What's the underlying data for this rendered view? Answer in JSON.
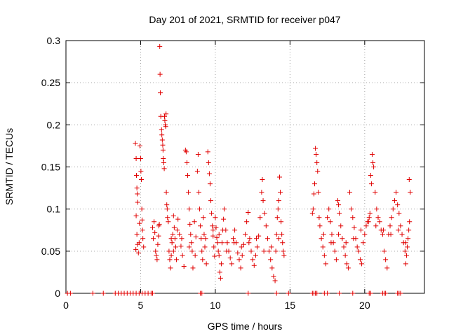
{
  "chart_data": {
    "type": "scatter",
    "title": "Day 201 of 2021, SRMTID for receiver p047",
    "xlabel": "GPS time / hours",
    "ylabel": "SRMTID / TECUs",
    "xlim": [
      0,
      24
    ],
    "ylim": [
      0,
      0.3
    ],
    "xticks": [
      0,
      5,
      10,
      15,
      20
    ],
    "xtick_labels": [
      "0",
      "5",
      "10",
      "15",
      "20"
    ],
    "yticks": [
      0,
      0.05,
      0.1,
      0.15,
      0.2,
      0.25,
      0.3
    ],
    "ytick_labels": [
      "0",
      "0.05",
      "0.1",
      "0.15",
      "0.2",
      "0.25",
      "0.3"
    ],
    "grid": true,
    "marker": "+",
    "color": "#e00000",
    "series": [
      {
        "name": "SRMTID",
        "points": [
          [
            0.1,
            0
          ],
          [
            0.3,
            0
          ],
          [
            1.8,
            0
          ],
          [
            2.5,
            0
          ],
          [
            3.3,
            0
          ],
          [
            3.5,
            0
          ],
          [
            3.7,
            0
          ],
          [
            3.9,
            0
          ],
          [
            4.1,
            0
          ],
          [
            4.3,
            0
          ],
          [
            4.5,
            0
          ],
          [
            4.7,
            0
          ],
          [
            4.9,
            0
          ],
          [
            5.1,
            0
          ],
          [
            5.3,
            0
          ],
          [
            5.5,
            0
          ],
          [
            5.7,
            0
          ],
          [
            5.8,
            0
          ],
          [
            9.0,
            0
          ],
          [
            9.1,
            0
          ],
          [
            12.2,
            0
          ],
          [
            14.1,
            0
          ],
          [
            14.9,
            0
          ],
          [
            16.5,
            0
          ],
          [
            16.6,
            0
          ],
          [
            16.7,
            0
          ],
          [
            16.8,
            0
          ],
          [
            17.3,
            0
          ],
          [
            17.5,
            0
          ],
          [
            18.3,
            0
          ],
          [
            19.2,
            0
          ],
          [
            20.3,
            0
          ],
          [
            20.4,
            0
          ],
          [
            21.2,
            0
          ],
          [
            21.3,
            0
          ],
          [
            21.4,
            0
          ],
          [
            22.2,
            0
          ],
          [
            22.3,
            0
          ],
          [
            22.4,
            0
          ],
          [
            4.65,
            0.178
          ],
          [
            4.7,
            0.16
          ],
          [
            4.72,
            0.14
          ],
          [
            4.75,
            0.125
          ],
          [
            4.78,
            0.118
          ],
          [
            4.8,
            0.108
          ],
          [
            4.7,
            0.092
          ],
          [
            4.75,
            0.07
          ],
          [
            4.8,
            0.058
          ],
          [
            4.85,
            0.048
          ],
          [
            4.68,
            0.052
          ],
          [
            4.9,
            0.06
          ],
          [
            4.92,
            0.083
          ],
          [
            4.95,
            0.175
          ],
          [
            5.0,
            0.16
          ],
          [
            5.02,
            0.145
          ],
          [
            5.05,
            0.135
          ],
          [
            5.08,
            0.1
          ],
          [
            5.1,
            0.087
          ],
          [
            5.12,
            0.075
          ],
          [
            5.15,
            0.065
          ],
          [
            5.2,
            0.055
          ],
          [
            5.8,
            0.078
          ],
          [
            5.85,
            0.065
          ],
          [
            5.9,
            0.085
          ],
          [
            5.95,
            0.072
          ],
          [
            6.0,
            0.05
          ],
          [
            6.05,
            0.045
          ],
          [
            6.1,
            0.04
          ],
          [
            6.15,
            0.058
          ],
          [
            6.2,
            0.068
          ],
          [
            6.22,
            0.08
          ],
          [
            6.25,
            0.082
          ],
          [
            6.28,
            0.293
          ],
          [
            6.3,
            0.26
          ],
          [
            6.32,
            0.238
          ],
          [
            6.35,
            0.21
          ],
          [
            6.4,
            0.194
          ],
          [
            6.42,
            0.188
          ],
          [
            6.45,
            0.182
          ],
          [
            6.48,
            0.176
          ],
          [
            6.5,
            0.17
          ],
          [
            6.52,
            0.16
          ],
          [
            6.55,
            0.155
          ],
          [
            6.58,
            0.148
          ],
          [
            6.6,
            0.21
          ],
          [
            6.62,
            0.205
          ],
          [
            6.65,
            0.2
          ],
          [
            6.68,
            0.198
          ],
          [
            6.7,
            0.213
          ],
          [
            6.72,
            0.12
          ],
          [
            6.75,
            0.105
          ],
          [
            6.78,
            0.1
          ],
          [
            6.8,
            0.09
          ],
          [
            6.85,
            0.085
          ],
          [
            6.9,
            0.05
          ],
          [
            6.95,
            0.04
          ],
          [
            7.0,
            0.03
          ],
          [
            7.05,
            0.045
          ],
          [
            7.1,
            0.06
          ],
          [
            7.15,
            0.07
          ],
          [
            7.2,
            0.092
          ],
          [
            7.25,
            0.078
          ],
          [
            7.3,
            0.065
          ],
          [
            7.35,
            0.055
          ],
          [
            7.4,
            0.04
          ],
          [
            7.5,
            0.088
          ],
          [
            7.6,
            0.07
          ],
          [
            7.7,
            0.056
          ],
          [
            7.8,
            0.045
          ],
          [
            7.9,
            0.032
          ],
          [
            8.0,
            0.17
          ],
          [
            8.05,
            0.168
          ],
          [
            8.1,
            0.155
          ],
          [
            8.15,
            0.14
          ],
          [
            8.2,
            0.12
          ],
          [
            8.25,
            0.1
          ],
          [
            8.3,
            0.082
          ],
          [
            8.35,
            0.07
          ],
          [
            8.4,
            0.06
          ],
          [
            8.45,
            0.05
          ],
          [
            8.5,
            0.03
          ],
          [
            8.6,
            0.085
          ],
          [
            8.7,
            0.067
          ],
          [
            8.8,
            0.145
          ],
          [
            8.85,
            0.165
          ],
          [
            8.9,
            0.12
          ],
          [
            8.95,
            0.1
          ],
          [
            9.0,
            0.08
          ],
          [
            9.05,
            0.065
          ],
          [
            9.1,
            0.05
          ],
          [
            9.15,
            0.04
          ],
          [
            9.2,
            0.09
          ],
          [
            9.25,
            0.07
          ],
          [
            9.3,
            0.055
          ],
          [
            9.4,
            0.035
          ],
          [
            9.5,
            0.168
          ],
          [
            9.55,
            0.155
          ],
          [
            9.6,
            0.142
          ],
          [
            9.65,
            0.13
          ],
          [
            9.7,
            0.11
          ],
          [
            9.75,
            0.095
          ],
          [
            9.8,
            0.08
          ],
          [
            9.85,
            0.068
          ],
          [
            9.9,
            0.055
          ],
          [
            9.95,
            0.044
          ],
          [
            10.0,
            0.09
          ],
          [
            10.05,
            0.078
          ],
          [
            10.1,
            0.066
          ],
          [
            10.15,
            0.06
          ],
          [
            10.2,
            0.05
          ],
          [
            10.25,
            0.045
          ],
          [
            10.3,
            0.025
          ],
          [
            10.35,
            0.018
          ],
          [
            10.4,
            0.035
          ],
          [
            10.45,
            0.06
          ],
          [
            10.5,
            0.075
          ],
          [
            10.55,
            0.088
          ],
          [
            10.6,
            0.1
          ],
          [
            10.7,
            0.075
          ],
          [
            10.8,
            0.06
          ],
          [
            10.9,
            0.05
          ],
          [
            11.0,
            0.042
          ],
          [
            11.1,
            0.035
          ],
          [
            11.2,
            0.065
          ],
          [
            11.3,
            0.075
          ],
          [
            11.4,
            0.06
          ],
          [
            11.5,
            0.048
          ],
          [
            11.6,
            0.04
          ],
          [
            11.7,
            0.03
          ],
          [
            11.8,
            0.045
          ],
          [
            11.9,
            0.058
          ],
          [
            12.0,
            0.07
          ],
          [
            12.1,
            0.085
          ],
          [
            12.2,
            0.096
          ],
          [
            12.3,
            0.065
          ],
          [
            12.4,
            0.05
          ],
          [
            12.5,
            0.04
          ],
          [
            12.6,
            0.033
          ],
          [
            12.7,
            0.045
          ],
          [
            12.8,
            0.055
          ],
          [
            12.9,
            0.068
          ],
          [
            13.0,
            0.09
          ],
          [
            13.1,
            0.12
          ],
          [
            13.15,
            0.135
          ],
          [
            13.2,
            0.11
          ],
          [
            13.3,
            0.095
          ],
          [
            13.4,
            0.08
          ],
          [
            13.5,
            0.065
          ],
          [
            13.6,
            0.05
          ],
          [
            13.7,
            0.04
          ],
          [
            13.8,
            0.03
          ],
          [
            13.9,
            0.02
          ],
          [
            14.0,
            0.015
          ],
          [
            14.05,
            0.05
          ],
          [
            14.1,
            0.07
          ],
          [
            14.15,
            0.09
          ],
          [
            14.2,
            0.1
          ],
          [
            14.25,
            0.11
          ],
          [
            14.3,
            0.138
          ],
          [
            14.35,
            0.12
          ],
          [
            14.4,
            0.085
          ],
          [
            14.45,
            0.07
          ],
          [
            14.5,
            0.06
          ],
          [
            14.55,
            0.05
          ],
          [
            14.6,
            0.045
          ],
          [
            16.5,
            0.095
          ],
          [
            16.55,
            0.1
          ],
          [
            16.6,
            0.118
          ],
          [
            16.65,
            0.13
          ],
          [
            16.7,
            0.172
          ],
          [
            16.75,
            0.165
          ],
          [
            16.8,
            0.155
          ],
          [
            16.85,
            0.145
          ],
          [
            16.9,
            0.12
          ],
          [
            16.95,
            0.09
          ],
          [
            17.0,
            0.08
          ],
          [
            17.1,
            0.065
          ],
          [
            17.2,
            0.055
          ],
          [
            17.3,
            0.045
          ],
          [
            17.4,
            0.035
          ],
          [
            17.5,
            0.09
          ],
          [
            17.6,
            0.1
          ],
          [
            17.7,
            0.085
          ],
          [
            17.8,
            0.07
          ],
          [
            17.9,
            0.06
          ],
          [
            18.0,
            0.05
          ],
          [
            18.1,
            0.04
          ],
          [
            18.2,
            0.11
          ],
          [
            18.25,
            0.105
          ],
          [
            18.3,
            0.095
          ],
          [
            18.4,
            0.08
          ],
          [
            18.5,
            0.065
          ],
          [
            18.6,
            0.055
          ],
          [
            18.7,
            0.045
          ],
          [
            18.8,
            0.035
          ],
          [
            18.9,
            0.03
          ],
          [
            19.0,
            0.12
          ],
          [
            19.1,
            0.1
          ],
          [
            19.2,
            0.09
          ],
          [
            19.3,
            0.078
          ],
          [
            19.4,
            0.065
          ],
          [
            19.5,
            0.055
          ],
          [
            19.6,
            0.05
          ],
          [
            19.7,
            0.04
          ],
          [
            19.8,
            0.035
          ],
          [
            19.9,
            0.06
          ],
          [
            20.0,
            0.07
          ],
          [
            20.1,
            0.08
          ],
          [
            20.2,
            0.085
          ],
          [
            20.3,
            0.09
          ],
          [
            20.35,
            0.095
          ],
          [
            20.4,
            0.14
          ],
          [
            20.45,
            0.13
          ],
          [
            20.5,
            0.165
          ],
          [
            20.55,
            0.155
          ],
          [
            20.6,
            0.15
          ],
          [
            20.7,
            0.12
          ],
          [
            20.8,
            0.1
          ],
          [
            20.9,
            0.09
          ],
          [
            21.0,
            0.085
          ],
          [
            21.1,
            0.075
          ],
          [
            21.2,
            0.07
          ],
          [
            21.3,
            0.05
          ],
          [
            21.4,
            0.04
          ],
          [
            21.5,
            0.03
          ],
          [
            21.6,
            0.07
          ],
          [
            21.7,
            0.08
          ],
          [
            21.8,
            0.09
          ],
          [
            21.9,
            0.1
          ],
          [
            22.0,
            0.11
          ],
          [
            22.1,
            0.12
          ],
          [
            22.2,
            0.105
          ],
          [
            22.3,
            0.095
          ],
          [
            22.4,
            0.08
          ],
          [
            22.5,
            0.07
          ],
          [
            22.6,
            0.06
          ],
          [
            22.7,
            0.05
          ],
          [
            22.75,
            0.035
          ],
          [
            22.8,
            0.045
          ],
          [
            22.85,
            0.055
          ],
          [
            22.9,
            0.065
          ],
          [
            22.95,
            0.075
          ],
          [
            23.0,
            0.085
          ],
          [
            23.05,
            0.12
          ],
          [
            22.98,
            0.135
          ],
          [
            7.05,
            0.065
          ],
          [
            7.2,
            0.05
          ],
          [
            7.45,
            0.075
          ],
          [
            7.75,
            0.065
          ],
          [
            8.25,
            0.055
          ],
          [
            8.65,
            0.045
          ],
          [
            9.35,
            0.065
          ],
          [
            9.85,
            0.075
          ],
          [
            10.25,
            0.07
          ],
          [
            10.75,
            0.05
          ],
          [
            11.25,
            0.06
          ],
          [
            11.75,
            0.055
          ],
          [
            12.25,
            0.06
          ],
          [
            12.75,
            0.065
          ],
          [
            13.25,
            0.05
          ],
          [
            13.75,
            0.055
          ],
          [
            14.25,
            0.065
          ],
          [
            17.25,
            0.07
          ],
          [
            17.75,
            0.06
          ],
          [
            18.25,
            0.07
          ],
          [
            18.75,
            0.06
          ],
          [
            19.25,
            0.065
          ],
          [
            19.75,
            0.075
          ],
          [
            20.25,
            0.085
          ],
          [
            20.75,
            0.08
          ],
          [
            21.25,
            0.075
          ],
          [
            21.75,
            0.07
          ],
          [
            22.25,
            0.075
          ],
          [
            22.75,
            0.06
          ]
        ]
      }
    ]
  }
}
